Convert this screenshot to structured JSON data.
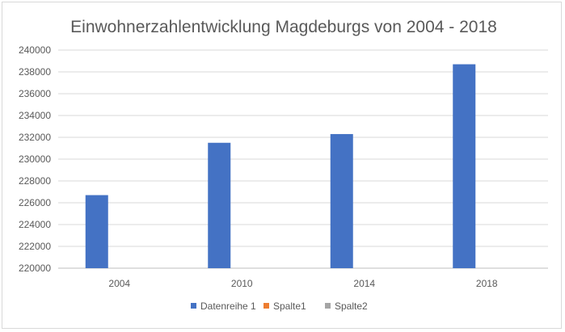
{
  "chart_data": {
    "type": "bar",
    "title": "Einwohnerzahlentwicklung Magdeburgs von 2004 - 2018",
    "xlabel": "",
    "ylabel": "",
    "categories": [
      "2004",
      "2010",
      "2014",
      "2018"
    ],
    "series": [
      {
        "name": "Datenreihe 1",
        "color": "#4472c4",
        "values": [
          226700,
          231500,
          232300,
          238700
        ]
      },
      {
        "name": "Spalte1",
        "color": "#ed7d31",
        "values": [
          null,
          null,
          null,
          null
        ]
      },
      {
        "name": "Spalte2",
        "color": "#a5a5a5",
        "values": [
          null,
          null,
          null,
          null
        ]
      }
    ],
    "ylim": [
      220000,
      240000
    ],
    "y_ticks": [
      "220000",
      "222000",
      "224000",
      "226000",
      "228000",
      "230000",
      "232000",
      "234000",
      "236000",
      "238000",
      "240000"
    ],
    "grid": true,
    "legend_position": "bottom"
  }
}
